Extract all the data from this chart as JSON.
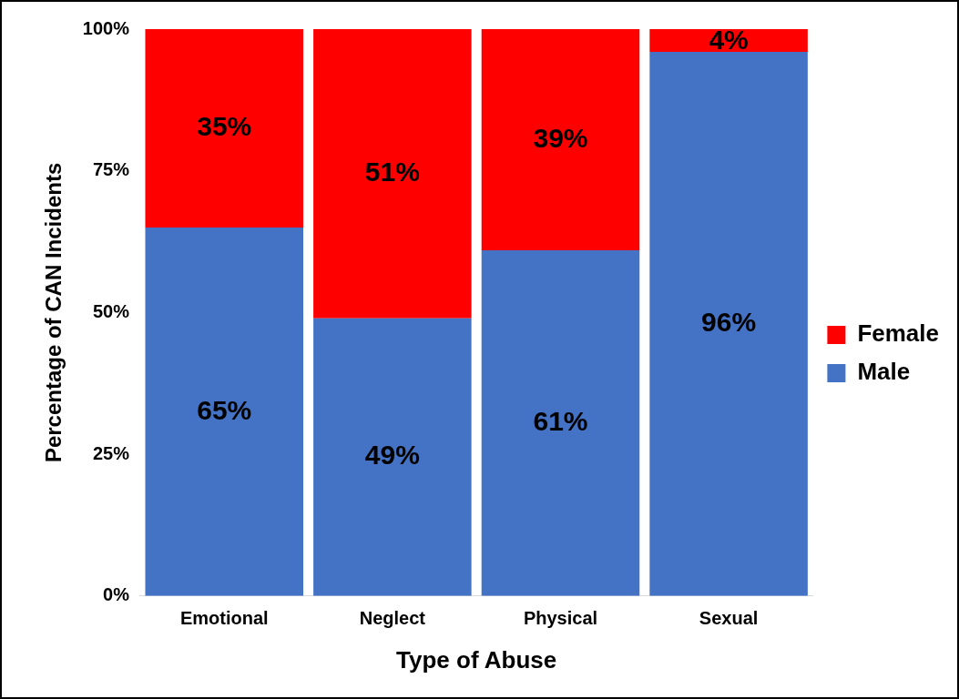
{
  "chart_data": {
    "type": "bar",
    "stacked": true,
    "xlabel": "Type of Abuse",
    "ylabel": "Percentage of CAN Incidents",
    "categories": [
      "Emotional",
      "Neglect",
      "Physical",
      "Sexual"
    ],
    "series": [
      {
        "name": "Male",
        "color": "#4472c4",
        "values": [
          65,
          49,
          61,
          96
        ],
        "value_labels": [
          "65%",
          "49%",
          "61%",
          "96%"
        ]
      },
      {
        "name": "Female",
        "color": "#ff0000",
        "values": [
          35,
          51,
          39,
          4
        ],
        "value_labels": [
          "35%",
          "51%",
          "39%",
          "4%"
        ]
      }
    ],
    "ylim": [
      0,
      100
    ],
    "yticks": [
      {
        "value": 0,
        "label": "0%"
      },
      {
        "value": 25,
        "label": "25%"
      },
      {
        "value": 50,
        "label": "50%"
      },
      {
        "value": 75,
        "label": "75%"
      },
      {
        "value": 100,
        "label": "100%"
      }
    ],
    "legend": "right"
  }
}
